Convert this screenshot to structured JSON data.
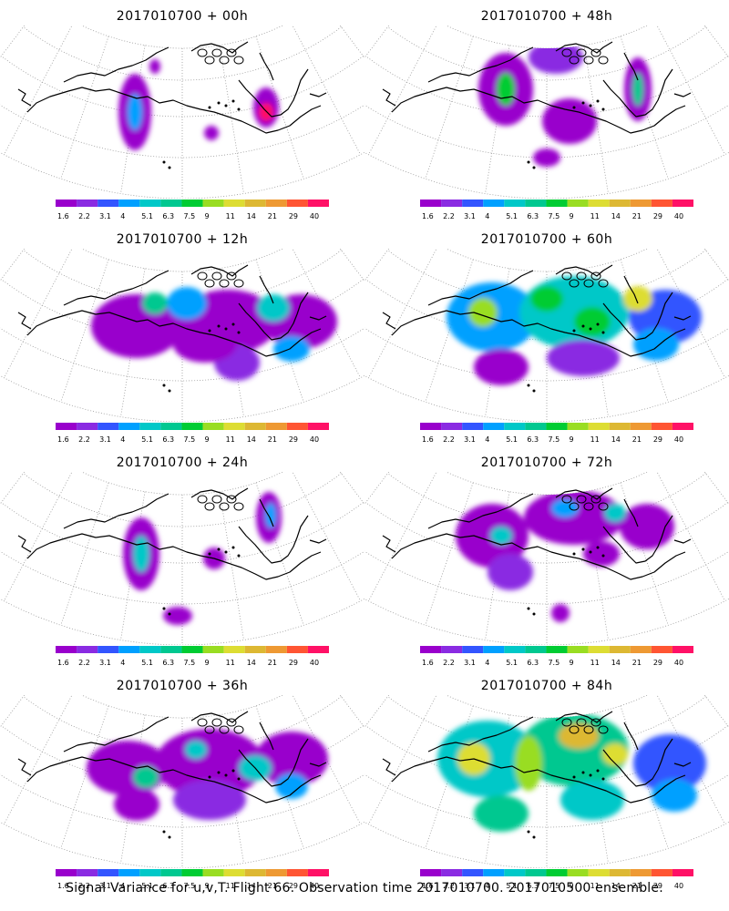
{
  "palette": [
    "#9900cc",
    "#8a2be2",
    "#3355ff",
    "#00a0ff",
    "#00c8c8",
    "#00c890",
    "#00cc33",
    "#99dd22",
    "#dddd33",
    "#ddb833",
    "#ee9933",
    "#ff5533",
    "#ff1166"
  ],
  "legend_labels": [
    "1.6",
    "2.2",
    "3.1",
    "4",
    "5.1",
    "6.3",
    "7.5",
    "9",
    "11",
    "14",
    "21",
    "29",
    "40"
  ],
  "panels": [
    {
      "title": "2017010700 + 00h",
      "level": 0
    },
    {
      "title": "2017010700 + 48h",
      "level": 4
    },
    {
      "title": "2017010700 + 12h",
      "level": 1
    },
    {
      "title": "2017010700 + 60h",
      "level": 5
    },
    {
      "title": "2017010700 + 24h",
      "level": 2
    },
    {
      "title": "2017010700 + 72h",
      "level": 6
    },
    {
      "title": "2017010700 + 36h",
      "level": 3
    },
    {
      "title": "2017010700 + 84h",
      "level": 7
    }
  ],
  "footer": "Signal Variance for u,v,T. Flight 66. Observation time 2017010700. 2017010500 ensemble."
}
